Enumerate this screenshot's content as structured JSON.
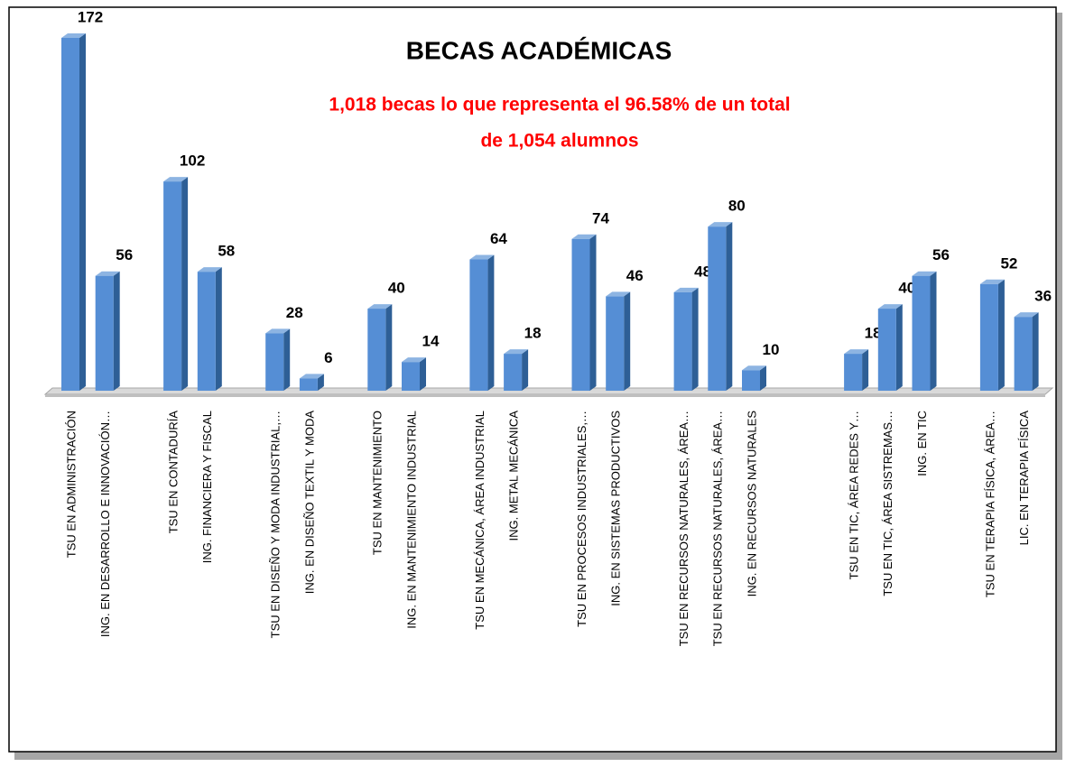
{
  "chart_data": {
    "type": "bar",
    "title": "BECAS ACADÉMICAS",
    "subtitle": [
      "1,018 becas lo que representa el  96.58% de un total",
      "de 1,054 alumnos"
    ],
    "color": "#558ed5",
    "categories": [
      "TSU EN ADMINISTRACIÓN",
      "ING. EN DESARROLLO E INNOVACIÓN…",
      null,
      "TSU EN CONTADURÍA",
      "ING. FINANCIERA Y FISCAL",
      null,
      "TSU EN DISEÑO Y MODA INDUSTRIAL,…",
      "ING. EN DISEÑO TEXTIL Y MODA",
      null,
      "TSU EN MANTENIMIENTO",
      "ING. EN MANTENIMIENTO INDUSTRIAL",
      null,
      "TSU EN MECÁNICA, ÁREA INDUSTRIAL",
      "ING. METAL MECÁNICA",
      null,
      "TSU EN PROCESOS INDUSTRIALES,…",
      "ING. EN SISTEMAS PRODUCTIVOS",
      null,
      "TSU EN RECURSOS NATURALES, ÁREA…",
      "TSU EN RECURSOS NATURALES, ÁREA…",
      "ING. EN RECURSOS NATURALES",
      null,
      null,
      "TSU EN TIC, ÁREA REDES Y…",
      "TSU EN TIC, ÁREA SISTREMAS…",
      "ING. EN TIC",
      null,
      "TSU EN TERAPIA FÍSICA, ÁREA…",
      "LIC. EN TERAPIA FÍSICA"
    ],
    "values": [
      172,
      56,
      null,
      102,
      58,
      null,
      28,
      6,
      null,
      40,
      14,
      null,
      64,
      18,
      null,
      74,
      46,
      null,
      48,
      80,
      10,
      null,
      null,
      18,
      40,
      56,
      null,
      52,
      36
    ]
  }
}
